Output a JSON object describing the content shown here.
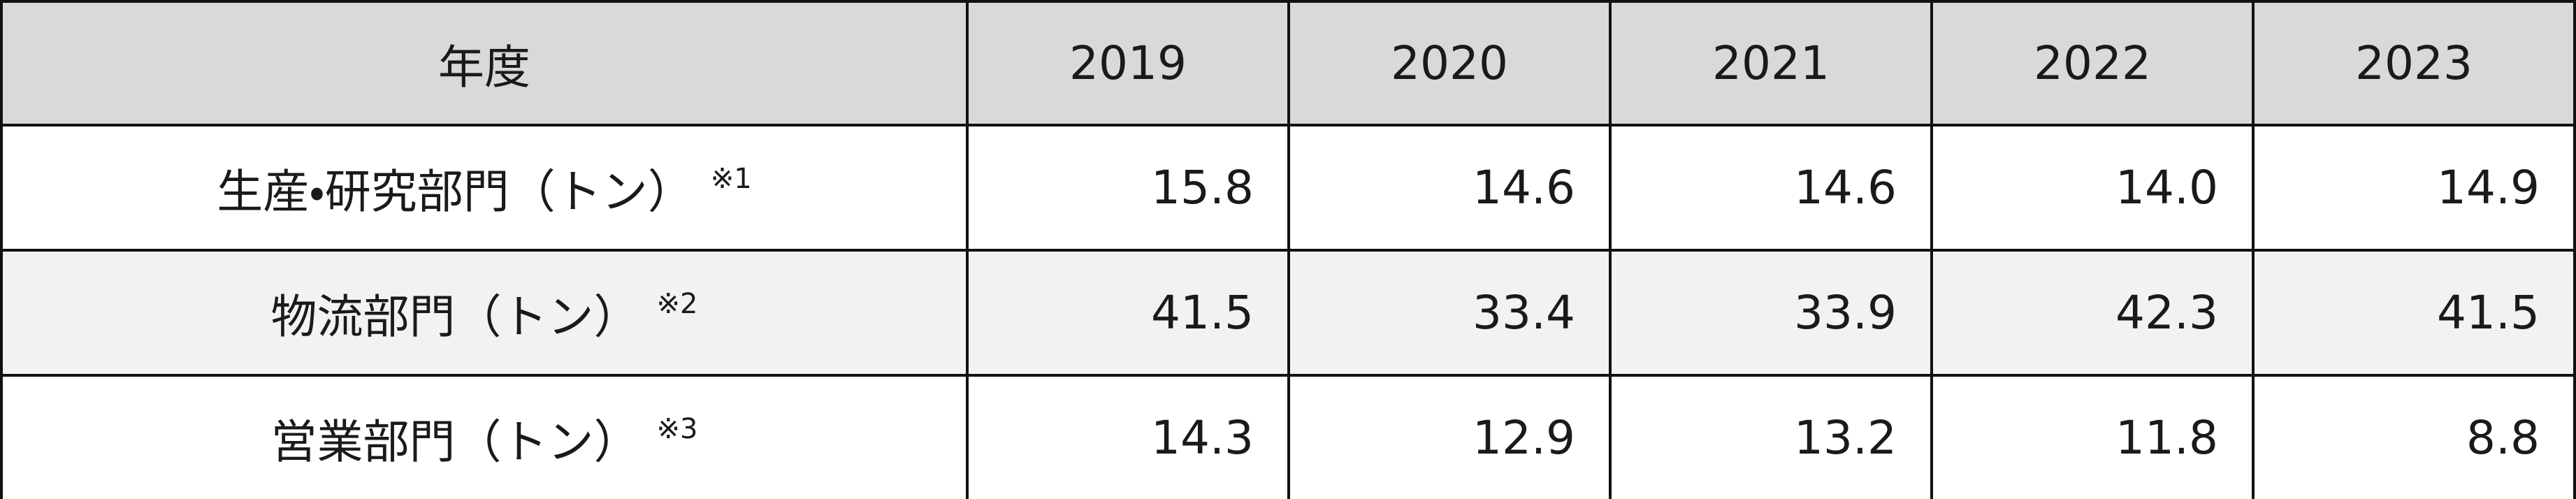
{
  "table": {
    "header": [
      "年度",
      "2019",
      "2020",
      "2021",
      "2022",
      "2023"
    ],
    "rows": [
      {
        "label": "生産・研究部門（トン）",
        "note": "※1",
        "values": [
          "15.8",
          "14.6",
          "14.6",
          "14.0",
          "14.9"
        ]
      },
      {
        "label": "物流部門（トン）",
        "note": "※2",
        "values": [
          "41.5",
          "33.4",
          "33.9",
          "42.3",
          "41.5"
        ]
      },
      {
        "label": "営業部門（トン）",
        "note": "※3",
        "values": [
          "14.3",
          "12.9",
          "13.2",
          "11.8",
          "8.8"
        ]
      }
    ]
  }
}
